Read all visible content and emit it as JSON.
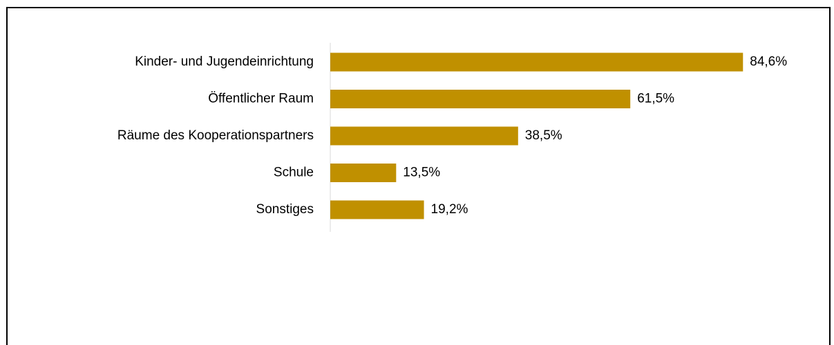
{
  "chart_data": {
    "type": "bar",
    "orientation": "horizontal",
    "categories": [
      "Kinder- und Jugendeinrichtung",
      "Öffentlicher Raum",
      "Räume des Kooperationspartners",
      "Schule",
      "Sonstiges"
    ],
    "values": [
      84.6,
      61.5,
      38.5,
      13.5,
      19.2
    ],
    "value_labels": [
      "84,6%",
      "61,5%",
      "38,5%",
      "13,5%",
      "19,2%"
    ],
    "unit": "%",
    "xlim": [
      0,
      100
    ],
    "grid": false,
    "legend": "none",
    "bar_color": "#C09000",
    "title": "",
    "xlabel": "",
    "ylabel": ""
  }
}
